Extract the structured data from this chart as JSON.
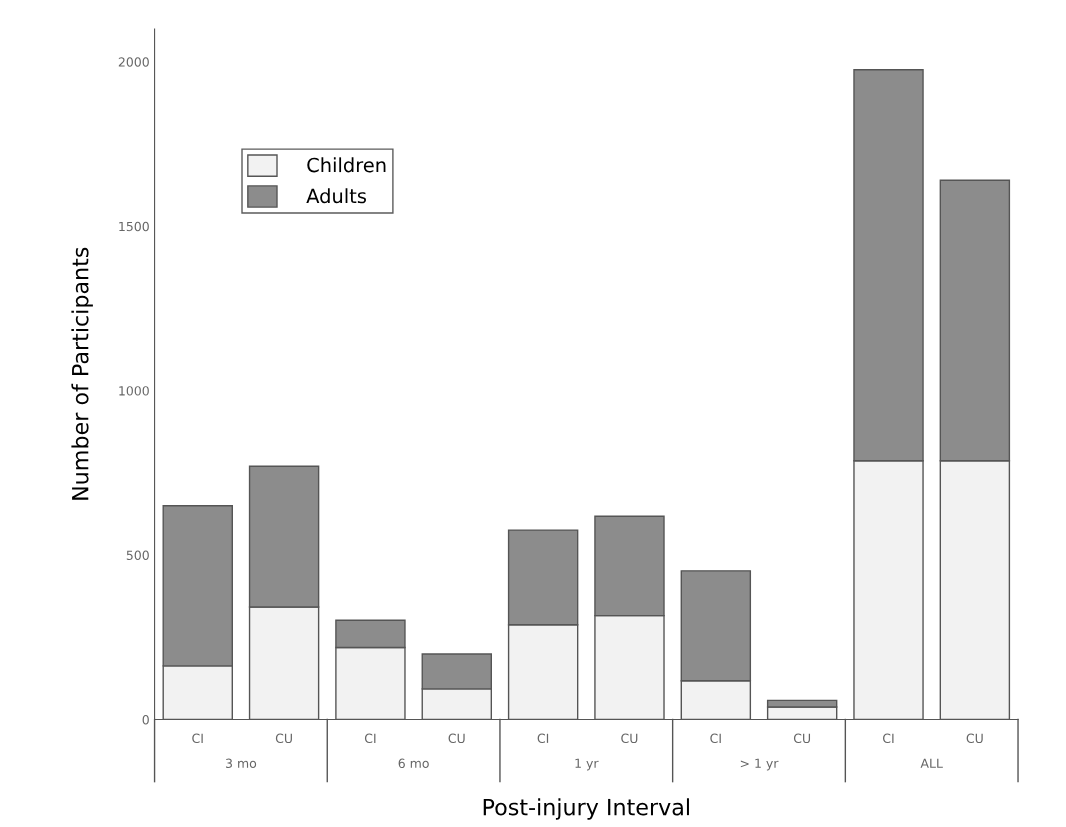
{
  "chart_data": {
    "type": "bar",
    "stacked": true,
    "xlabel": "Post-injury Interval",
    "ylabel": "Number of Participants",
    "categories": [
      "CI",
      "CU",
      "CI",
      "CU",
      "CI",
      "CU",
      "CI",
      "CU",
      "CI",
      "CU"
    ],
    "series": [
      {
        "name": "Children",
        "color": "#f2f2f2",
        "values": [
          163,
          342,
          219,
          93,
          288,
          316,
          118,
          38,
          787,
          787
        ]
      },
      {
        "name": "Adults",
        "color": "#8c8c8c",
        "values": [
          487,
          428,
          83,
          106,
          288,
          302,
          334,
          20,
          1189,
          853
        ]
      }
    ],
    "annotations": [
      "3 mo",
      "6 mo",
      "1 yr",
      "> 1 yr",
      "ALL"
    ],
    "ylim": [
      0,
      2100
    ],
    "yticks": [
      0,
      500,
      1000,
      1500,
      2000
    ],
    "grid": false,
    "legend": "top left"
  }
}
